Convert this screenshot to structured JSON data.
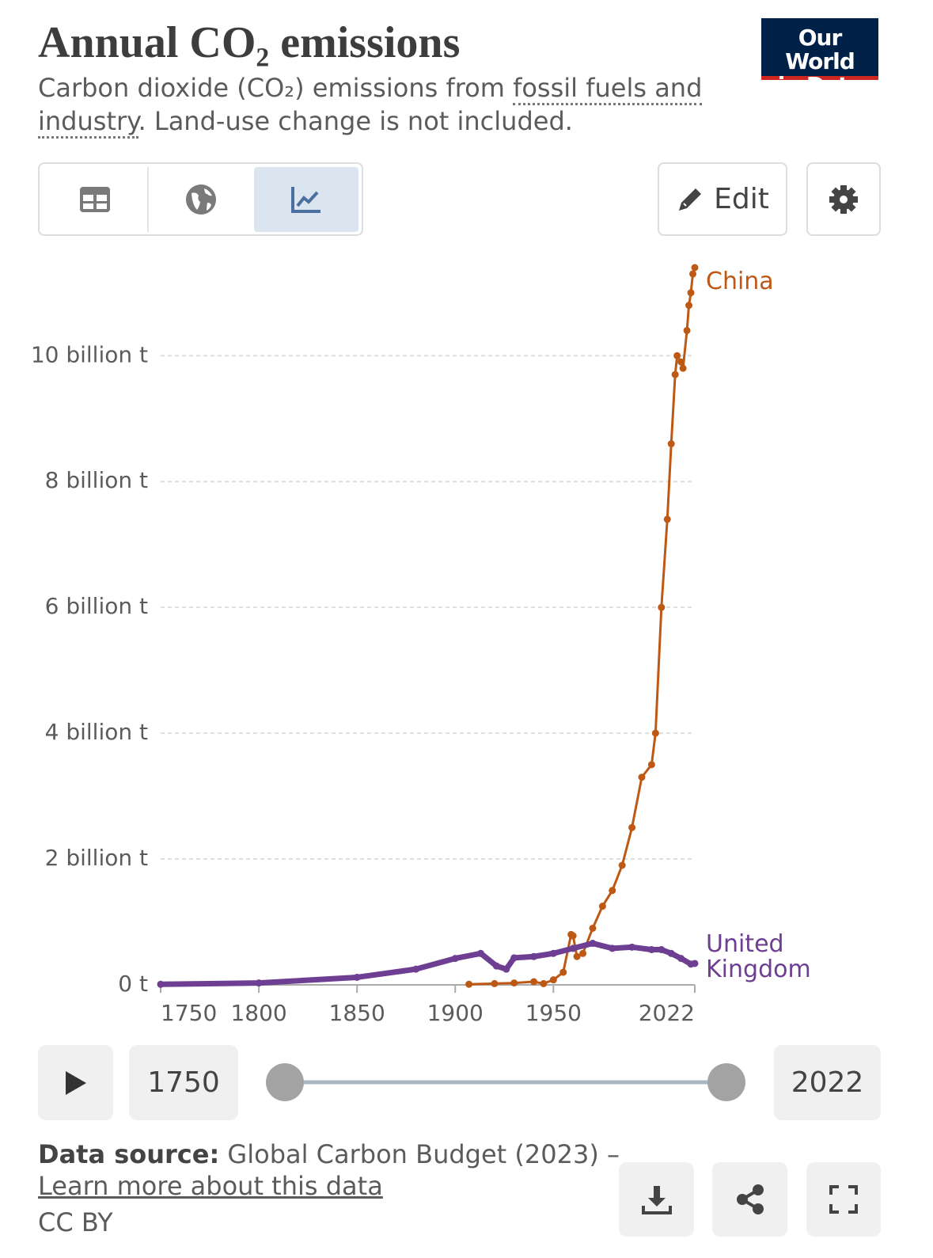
{
  "header": {
    "title": "Annual CO₂ emissions",
    "subtitle": [
      "Carbon dioxide (CO₂) emissions from ",
      "fossil fuels and industry",
      ". Land-use change is not included."
    ],
    "logo": [
      "Our World",
      "in Data"
    ]
  },
  "controls": {
    "edit": "Edit"
  },
  "chart_data": {
    "type": "line",
    "xlim": [
      1750,
      2022
    ],
    "xticks": [
      1750,
      1800,
      1850,
      1900,
      1950,
      2022
    ],
    "ylim": [
      0,
      11400000000.0
    ],
    "yticks": [
      {
        "value": 0,
        "label": "0 t"
      },
      {
        "value": 2000000000.0,
        "label": "2 billion t"
      },
      {
        "value": 4000000000.0,
        "label": "4 billion t"
      },
      {
        "value": 6000000000.0,
        "label": "6 billion t"
      },
      {
        "value": 8000000000.0,
        "label": "8 billion t"
      },
      {
        "value": 10000000000.0,
        "label": "10 billion t"
      }
    ],
    "grid": true,
    "series": [
      {
        "name": "China",
        "color": "#be5915",
        "x": [
          1907,
          1920,
          1930,
          1940,
          1945,
          1950,
          1955,
          1959,
          1960,
          1962,
          1965,
          1970,
          1975,
          1980,
          1985,
          1990,
          1995,
          2000,
          2002,
          2005,
          2008,
          2010,
          2012,
          2013,
          2015,
          2016,
          2018,
          2019,
          2020,
          2021,
          2022
        ],
        "values": [
          10000000.0,
          20000000.0,
          30000000.0,
          50000000.0,
          20000000.0,
          80000000.0,
          200000000.0,
          800000000.0,
          780000000.0,
          450000000.0,
          500000000.0,
          900000000.0,
          1250000000.0,
          1500000000.0,
          1900000000.0,
          2500000000.0,
          3300000000.0,
          3500000000.0,
          4000000000.0,
          6000000000.0,
          7400000000.0,
          8600000000.0,
          9700000000.0,
          10000000000.0,
          9900000000.0,
          9800000000.0,
          10400000000.0,
          10800000000.0,
          11000000000.0,
          11300000000.0,
          11400000000.0
        ]
      },
      {
        "name": "United Kingdom",
        "color": "#6d3e91",
        "x": [
          1750,
          1800,
          1850,
          1880,
          1900,
          1913,
          1921,
          1926,
          1930,
          1940,
          1950,
          1960,
          1970,
          1980,
          1990,
          2000,
          2005,
          2010,
          2015,
          2020,
          2022
        ],
        "values": [
          9000000.0,
          30000000.0,
          120000000.0,
          250000000.0,
          420000000.0,
          500000000.0,
          300000000.0,
          250000000.0,
          430000000.0,
          450000000.0,
          500000000.0,
          580000000.0,
          660000000.0,
          580000000.0,
          600000000.0,
          560000000.0,
          560000000.0,
          500000000.0,
          420000000.0,
          330000000.0,
          340000000.0
        ]
      }
    ]
  },
  "footer": {
    "source_label": "Data source:",
    "source": " Global Carbon Budget (2023) –",
    "link": "Learn more about this data",
    "license": "CC BY"
  }
}
